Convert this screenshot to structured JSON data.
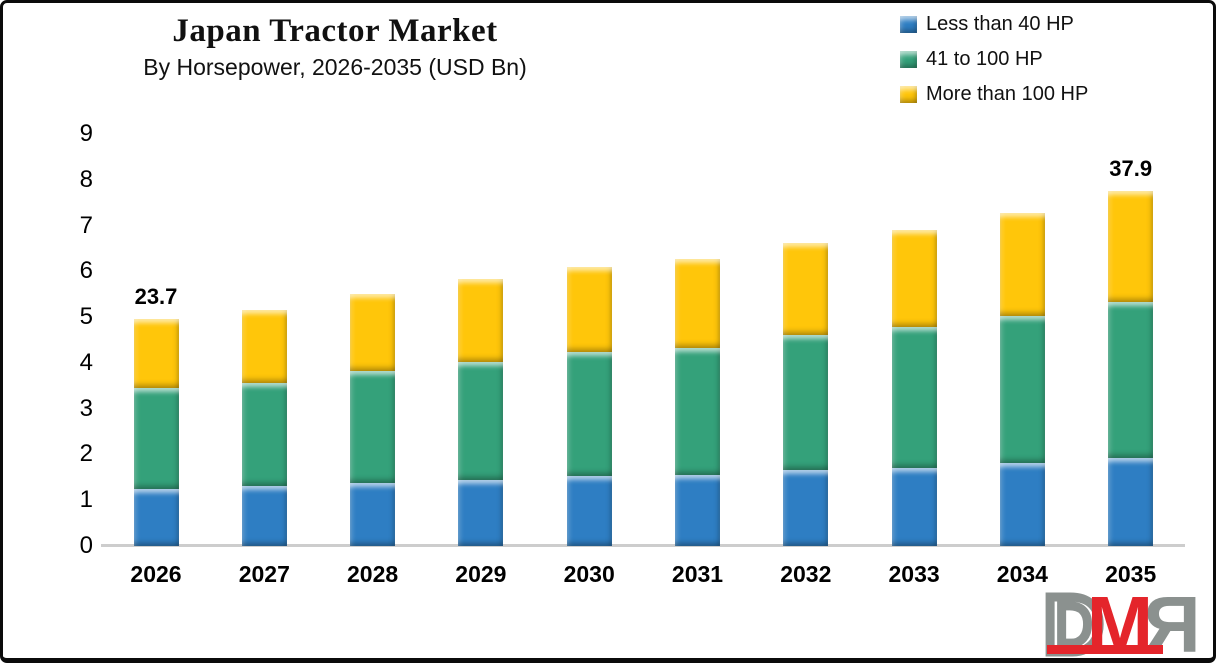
{
  "chart_data": {
    "type": "bar",
    "stacked": true,
    "title": "Japan Tractor Market",
    "subtitle": "By Horsepower, 2026-2035 (USD Bn)",
    "unit": "USD Bn",
    "categories": [
      "2026",
      "2027",
      "2028",
      "2029",
      "2030",
      "2031",
      "2032",
      "2033",
      "2034",
      "2035"
    ],
    "series": [
      {
        "name": "Less than 40 HP",
        "color": "#2E7EC3",
        "values": [
          1.25,
          1.3,
          1.37,
          1.45,
          1.52,
          1.55,
          1.65,
          1.71,
          1.82,
          1.93
        ]
      },
      {
        "name": "41 to 100 HP",
        "color": "#34A17A",
        "values": [
          2.2,
          2.25,
          2.45,
          2.57,
          2.72,
          2.78,
          2.96,
          3.07,
          3.2,
          3.4
        ]
      },
      {
        "name": "More than 100 HP",
        "color": "#FFC60A",
        "values": [
          1.5,
          1.6,
          1.68,
          1.82,
          1.85,
          1.95,
          2.0,
          2.12,
          2.25,
          2.42
        ]
      }
    ],
    "ylim": [
      0,
      9
    ],
    "yticks": [
      0,
      1,
      2,
      3,
      4,
      5,
      6,
      7,
      8,
      9
    ],
    "grid": false,
    "legend_position": "top-right",
    "annotations": [
      {
        "category": "2026",
        "label": "23.7"
      },
      {
        "category": "2035",
        "label": "37.9"
      }
    ]
  },
  "logo": {
    "letters": {
      "d": "D",
      "m": "M",
      "r": "R"
    },
    "colors": {
      "gray": "#8B918F",
      "red": "#E4252B"
    }
  }
}
